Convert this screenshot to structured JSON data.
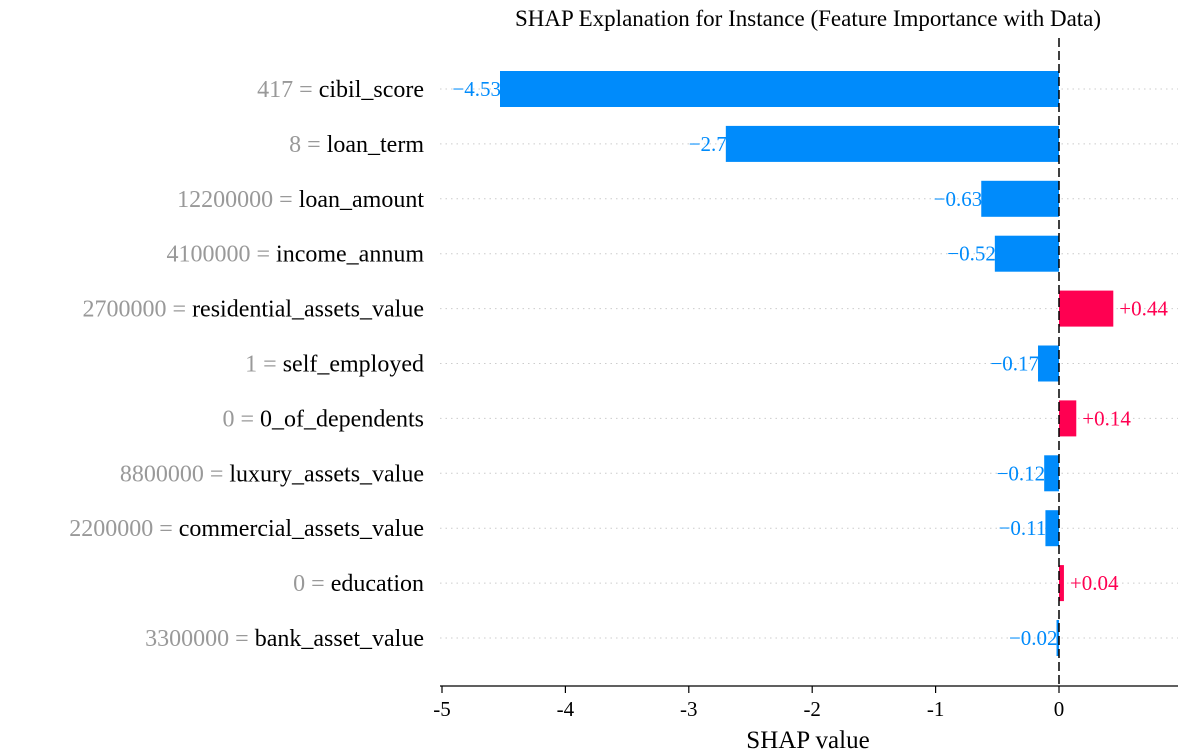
{
  "chart_data": {
    "type": "bar",
    "orientation": "horizontal",
    "title": "SHAP Explanation for Instance (Feature Importance with Data)",
    "xlabel": "SHAP value",
    "xlim": [
      -5,
      0.95
    ],
    "xticks": [
      -5,
      -4,
      -3,
      -2,
      -1,
      0
    ],
    "xtick_labels": [
      "-5",
      "-4",
      "-3",
      "-2",
      "-1",
      "0"
    ],
    "colors": {
      "positive": "#ff0051",
      "negative": "#008bfb",
      "feature_value": "#999999"
    },
    "features": [
      {
        "value": "417",
        "name": "cibil_score",
        "shap": -4.53,
        "label": "−4.53"
      },
      {
        "value": "8",
        "name": "loan_term",
        "shap": -2.7,
        "label": "−2.7"
      },
      {
        "value": "12200000",
        "name": "loan_amount",
        "shap": -0.63,
        "label": "−0.63"
      },
      {
        "value": "4100000",
        "name": "income_annum",
        "shap": -0.52,
        "label": "−0.52"
      },
      {
        "value": "2700000",
        "name": "residential_assets_value",
        "shap": 0.44,
        "label": "+0.44"
      },
      {
        "value": "1",
        "name": "self_employed",
        "shap": -0.17,
        "label": "−0.17"
      },
      {
        "value": "0",
        "name": "0_of_dependents",
        "shap": 0.14,
        "label": "+0.14"
      },
      {
        "value": "8800000",
        "name": "luxury_assets_value",
        "shap": -0.12,
        "label": "−0.12"
      },
      {
        "value": "2200000",
        "name": "commercial_assets_value",
        "shap": -0.11,
        "label": "−0.11"
      },
      {
        "value": "0",
        "name": "education",
        "shap": 0.04,
        "label": "+0.04"
      },
      {
        "value": "3300000",
        "name": "bank_asset_value",
        "shap": -0.02,
        "label": "−0.02"
      }
    ]
  }
}
